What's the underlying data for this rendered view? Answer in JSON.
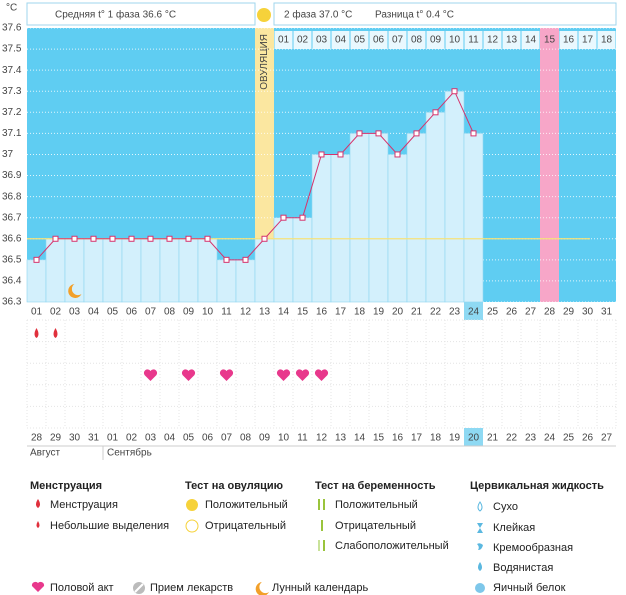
{
  "header": {
    "phase1": "Средняя t° 1 фаза 36.6 °C",
    "phase2": "2 фаза 37.0 °C",
    "difference": "Разница t° 0.4 °C"
  },
  "chart_data": {
    "type": "line",
    "y_label": "°C",
    "categories": [
      "01",
      "02",
      "03",
      "04",
      "05",
      "06",
      "07",
      "08",
      "09",
      "10",
      "11",
      "12",
      "13",
      "14",
      "15",
      "16",
      "17",
      "18",
      "19",
      "20",
      "21",
      "22",
      "23",
      "24",
      "25",
      "26",
      "27",
      "28",
      "29",
      "30",
      "31"
    ],
    "phase2_days": [
      "01",
      "02",
      "03",
      "04",
      "05",
      "06",
      "07",
      "08",
      "09",
      "10",
      "11",
      "12",
      "13",
      "14",
      "15",
      "16",
      "17",
      "18"
    ],
    "ovulation_label": "ОВУЛЯЦИЯ",
    "ovulation_index": 12,
    "highlight_index": 27,
    "today_index": 23,
    "series": [
      {
        "color": "#d6336c",
        "values": [
          36.5,
          36.6,
          36.6,
          36.6,
          36.6,
          36.6,
          36.6,
          36.6,
          36.6,
          36.6,
          36.5,
          36.5,
          36.6,
          36.7,
          36.7,
          37,
          37,
          37.1,
          37.1,
          37,
          37.1,
          37.2,
          37.3,
          37.1,
          null,
          null,
          null,
          null,
          null,
          null,
          null
        ]
      }
    ],
    "coverline": 36.6,
    "ylim": [
      36.3,
      37.6
    ],
    "yticks": [
      36.3,
      36.4,
      36.5,
      36.6,
      36.7,
      36.8,
      36.9,
      37,
      37.1,
      37.2,
      37.3,
      37.4,
      37.5,
      37.6
    ],
    "grid": true,
    "menstruation": [
      0,
      1
    ],
    "intercourse": [
      6,
      8,
      10,
      13,
      14,
      15
    ],
    "lunar": [
      2
    ],
    "dates": [
      "28",
      "29",
      "30",
      "31",
      "01",
      "02",
      "03",
      "04",
      "05",
      "06",
      "07",
      "08",
      "09",
      "10",
      "11",
      "12",
      "13",
      "14",
      "15",
      "16",
      "17",
      "18",
      "19",
      "20",
      "21",
      "22",
      "23",
      "24",
      "25",
      "26",
      "27"
    ],
    "weekend_indices": [
      0,
      1,
      7,
      8,
      14,
      15,
      21,
      22,
      28,
      29
    ],
    "months": [
      "Август",
      "Сентябрь"
    ]
  },
  "legend": {
    "groups": [
      {
        "title": "Менструация",
        "items": [
          "Менструация",
          "Небольшие выделения"
        ]
      },
      {
        "title": "Тест на овуляцию",
        "items": [
          "Положительный",
          "Отрицательный"
        ]
      },
      {
        "title": "Тест на беременность",
        "items": [
          "Положительный",
          "Отрицательный",
          "Слабоположительный"
        ]
      },
      {
        "title": "Цервикальная жидкость",
        "items": [
          "Сухо",
          "Клейкая",
          "Кремообразная",
          "Водянистая",
          "Яичный белок"
        ]
      }
    ],
    "extra": [
      "Половой акт",
      "Прием лекарств",
      "Лунный календарь"
    ]
  }
}
